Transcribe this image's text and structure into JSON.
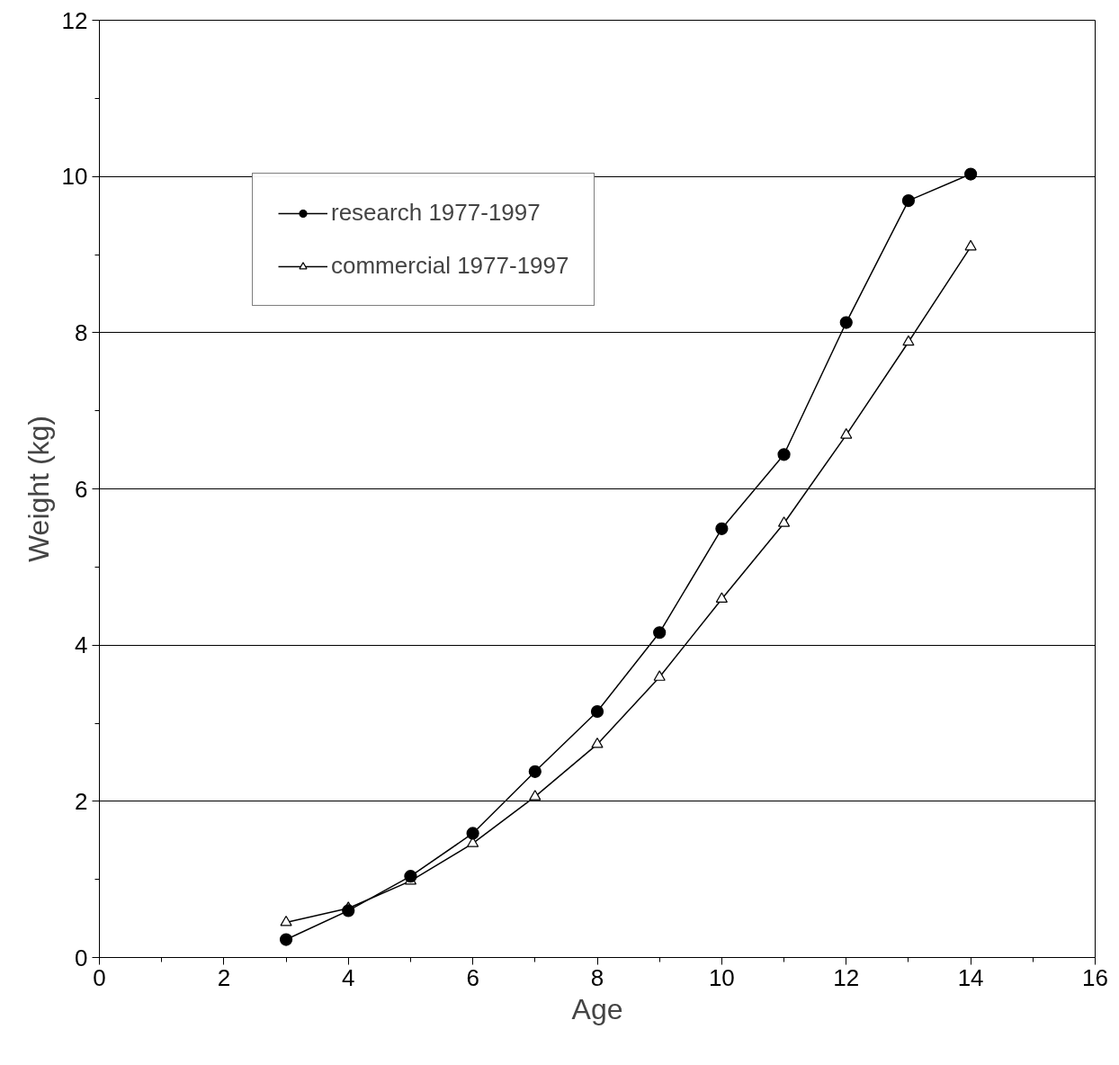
{
  "chart_data": {
    "type": "line",
    "xlabel": "Age",
    "ylabel": "Weight (kg)",
    "x": [
      3,
      4,
      5,
      6,
      7,
      8,
      9,
      10,
      11,
      12,
      13,
      14
    ],
    "series": [
      {
        "name": "research 1977-1997",
        "color": "#000000",
        "marker": "circle",
        "values": [
          0.23,
          0.6,
          1.04,
          1.59,
          2.38,
          3.15,
          4.16,
          5.49,
          6.44,
          8.13,
          9.69,
          10.03
        ]
      },
      {
        "name": "commercial 1977-1997",
        "color": "#000000",
        "marker": "triangle",
        "values": [
          0.45,
          0.63,
          0.98,
          1.46,
          2.06,
          2.73,
          3.59,
          4.59,
          5.56,
          6.69,
          7.88,
          9.1
        ]
      }
    ],
    "xlim": [
      0,
      16
    ],
    "ylim": [
      0,
      12
    ],
    "xticks": [
      0,
      {
        "value": 1,
        "label": null
      },
      2,
      {
        "value": 3,
        "label": null
      },
      4,
      {
        "value": 5,
        "label": null
      },
      6,
      {
        "value": 7,
        "label": null
      },
      8,
      {
        "value": 9,
        "label": null
      },
      10,
      {
        "value": 11,
        "label": null
      },
      12,
      {
        "value": 13,
        "label": null
      },
      14,
      {
        "value": 15,
        "label": null
      },
      16
    ],
    "yticks": [
      0,
      {
        "value": 1,
        "label": null
      },
      2,
      {
        "value": 3,
        "label": null
      },
      4,
      {
        "value": 5,
        "label": null
      },
      6,
      {
        "value": 7,
        "label": null
      },
      8,
      {
        "value": 9,
        "label": null
      },
      10,
      {
        "value": 11,
        "label": null
      },
      12
    ],
    "grid": "y",
    "legend": "top left",
    "line_style": "solid"
  }
}
